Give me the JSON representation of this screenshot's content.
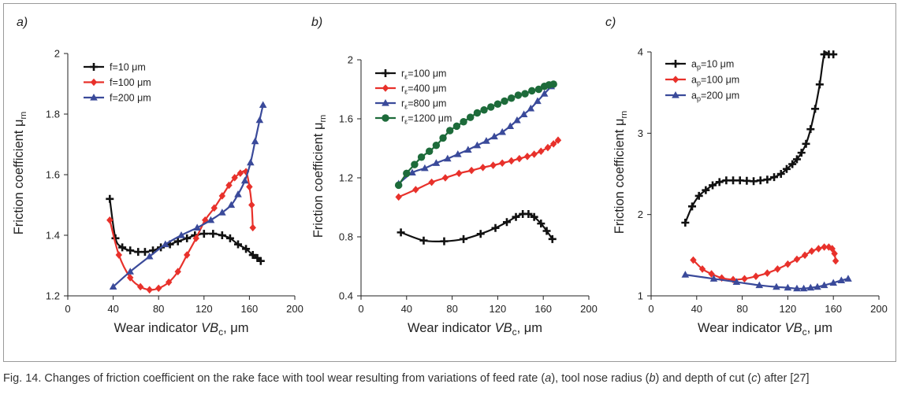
{
  "caption": {
    "p1": "Fig. 14. Changes of friction coefficient on the rake face with tool wear resulting from variations of feed rate (",
    "a": "a",
    "p2": "), tool nose radius (",
    "b": "b",
    "p3": ") and depth of cut (",
    "c": "c",
    "p4": ") after [27]"
  },
  "colors": {
    "black": "#111111",
    "red": "#e8312b",
    "blue": "#3a4a9a",
    "green": "#1d6b3a"
  },
  "chart_data": [
    {
      "type": "line",
      "panel_label": "a)",
      "xlabel": {
        "main": "Wear indicator ",
        "var": "VB",
        "sub": "c",
        "unit": ", μm"
      },
      "ylabel": {
        "main": "Friction coefficient ",
        "var": "μ",
        "sub": "rn"
      },
      "xlim": [
        0,
        200
      ],
      "ylim": [
        1.2,
        2.0
      ],
      "xticks": [
        0,
        40,
        80,
        120,
        160,
        200
      ],
      "xtick_labels": [
        "0",
        "40",
        "80",
        "120",
        "160",
        "200"
      ],
      "yticks": [
        1.2,
        1.4,
        1.6,
        1.8,
        2.0
      ],
      "ytick_labels": [
        "1.2",
        "1.4",
        "1.6",
        "1.8",
        "2"
      ],
      "grid": false,
      "legend_position": "top-left",
      "series": [
        {
          "legend_main": "f=10 μm",
          "legend_sub": "",
          "legend_rest": "",
          "color": "#111111",
          "marker": "plus",
          "x": [
            37,
            42,
            48,
            55,
            62,
            68,
            75,
            82,
            90,
            97,
            105,
            112,
            120,
            128,
            136,
            143,
            150,
            157,
            163,
            167,
            170
          ],
          "y": [
            1.52,
            1.39,
            1.36,
            1.35,
            1.345,
            1.345,
            1.35,
            1.36,
            1.37,
            1.38,
            1.39,
            1.4,
            1.405,
            1.405,
            1.4,
            1.39,
            1.37,
            1.355,
            1.335,
            1.325,
            1.315
          ]
        },
        {
          "legend_main": "f=100 μm",
          "legend_sub": "",
          "legend_rest": "",
          "color": "#e8312b",
          "marker": "diamond",
          "x": [
            37,
            45,
            55,
            64,
            72,
            80,
            89,
            97,
            105,
            113,
            121,
            129,
            136,
            142,
            147,
            152,
            157,
            160,
            162,
            163
          ],
          "y": [
            1.45,
            1.335,
            1.26,
            1.23,
            1.22,
            1.225,
            1.245,
            1.28,
            1.335,
            1.39,
            1.45,
            1.49,
            1.53,
            1.565,
            1.59,
            1.605,
            1.61,
            1.56,
            1.5,
            1.425
          ]
        },
        {
          "legend_main": "f=200 μm",
          "legend_sub": "",
          "legend_rest": "",
          "color": "#3a4a9a",
          "marker": "triangle",
          "x": [
            40,
            55,
            72,
            86,
            100,
            114,
            126,
            136,
            144,
            150,
            156,
            161,
            165,
            169,
            172
          ],
          "y": [
            1.23,
            1.28,
            1.33,
            1.37,
            1.4,
            1.425,
            1.45,
            1.475,
            1.5,
            1.535,
            1.58,
            1.64,
            1.71,
            1.78,
            1.83
          ]
        }
      ]
    },
    {
      "type": "line",
      "panel_label": "b)",
      "xlabel": {
        "main": "Wear indicator ",
        "var": "VB",
        "sub": "c",
        "unit": ", μm"
      },
      "ylabel": {
        "main": "Friction coefficient ",
        "var": "μ",
        "sub": "rn"
      },
      "xlim": [
        0,
        200
      ],
      "ylim": [
        0.4,
        2.0
      ],
      "xticks": [
        0,
        40,
        80,
        120,
        160,
        200
      ],
      "xtick_labels": [
        "0",
        "40",
        "80",
        "120",
        "160",
        "200"
      ],
      "yticks": [
        0.4,
        0.8,
        1.2,
        1.6,
        2.0
      ],
      "ytick_labels": [
        "0.4",
        "0.8",
        "1.2",
        "1.6",
        "2"
      ],
      "grid": false,
      "legend_position": "top-left",
      "series": [
        {
          "legend_main": "r",
          "legend_sub": "ε",
          "legend_rest": "=100 μm",
          "color": "#111111",
          "marker": "plus",
          "x": [
            35,
            55,
            73,
            90,
            105,
            118,
            128,
            136,
            142,
            147,
            152,
            158,
            163,
            168
          ],
          "y": [
            0.83,
            0.775,
            0.77,
            0.785,
            0.82,
            0.86,
            0.9,
            0.935,
            0.955,
            0.955,
            0.935,
            0.89,
            0.84,
            0.785
          ]
        },
        {
          "legend_main": "r",
          "legend_sub": "ε",
          "legend_rest": "=400 μm",
          "color": "#e8312b",
          "marker": "diamond",
          "x": [
            33,
            48,
            62,
            74,
            86,
            97,
            107,
            116,
            124,
            132,
            139,
            146,
            152,
            158,
            164,
            169,
            173
          ],
          "y": [
            1.07,
            1.12,
            1.17,
            1.2,
            1.23,
            1.25,
            1.27,
            1.285,
            1.3,
            1.315,
            1.33,
            1.345,
            1.36,
            1.38,
            1.405,
            1.43,
            1.455
          ]
        },
        {
          "legend_main": "r",
          "legend_sub": "ε",
          "legend_rest": "=800 μm",
          "color": "#3a4a9a",
          "marker": "triangle",
          "x": [
            33,
            45,
            56,
            66,
            76,
            85,
            94,
            102,
            110,
            117,
            124,
            131,
            137,
            143,
            149,
            155,
            161,
            167
          ],
          "y": [
            1.16,
            1.235,
            1.265,
            1.3,
            1.33,
            1.36,
            1.39,
            1.42,
            1.45,
            1.48,
            1.51,
            1.55,
            1.59,
            1.63,
            1.67,
            1.72,
            1.77,
            1.82
          ]
        },
        {
          "legend_main": "r",
          "legend_sub": "ε",
          "legend_rest": "=1200 μm",
          "color": "#1d6b3a",
          "marker": "circle",
          "x": [
            33,
            40,
            47,
            53,
            60,
            66,
            72,
            78,
            84,
            90,
            96,
            102,
            108,
            114,
            120,
            126,
            132,
            138,
            144,
            150,
            156,
            161,
            165,
            169
          ],
          "y": [
            1.15,
            1.23,
            1.29,
            1.34,
            1.38,
            1.42,
            1.47,
            1.52,
            1.55,
            1.58,
            1.61,
            1.64,
            1.66,
            1.68,
            1.7,
            1.72,
            1.74,
            1.76,
            1.77,
            1.79,
            1.8,
            1.82,
            1.83,
            1.835
          ]
        }
      ]
    },
    {
      "type": "line",
      "panel_label": "c)",
      "xlabel": {
        "main": "Wear indicator ",
        "var": "VB",
        "sub": "c",
        "unit": ", μm"
      },
      "ylabel": {
        "main": "Friction coefficient ",
        "var": "μ",
        "sub": "rn"
      },
      "xlim": [
        0,
        200
      ],
      "ylim": [
        1,
        4
      ],
      "xticks": [
        0,
        40,
        80,
        120,
        160,
        200
      ],
      "xtick_labels": [
        "0",
        "40",
        "80",
        "120",
        "160",
        "200"
      ],
      "yticks": [
        1,
        2,
        3,
        4
      ],
      "ytick_labels": [
        "1",
        "2",
        "3",
        "4"
      ],
      "grid": false,
      "legend_position": "top-left",
      "series": [
        {
          "legend_main": "a",
          "legend_sub": "p",
          "legend_rest": "=10 μm",
          "color": "#111111",
          "marker": "plus",
          "x": [
            30,
            36,
            42,
            48,
            54,
            60,
            66,
            72,
            78,
            84,
            90,
            96,
            102,
            108,
            114,
            119,
            124,
            128,
            132,
            136,
            140,
            144,
            148,
            152,
            156,
            160
          ],
          "y": [
            1.9,
            2.1,
            2.23,
            2.3,
            2.36,
            2.4,
            2.42,
            2.42,
            2.42,
            2.415,
            2.41,
            2.42,
            2.43,
            2.46,
            2.5,
            2.56,
            2.62,
            2.68,
            2.76,
            2.87,
            3.05,
            3.3,
            3.6,
            3.97,
            3.97,
            3.97
          ]
        },
        {
          "legend_main": "a",
          "legend_sub": "p",
          "legend_rest": "=100 μm",
          "color": "#e8312b",
          "marker": "diamond",
          "x": [
            37,
            45,
            53,
            62,
            72,
            82,
            92,
            102,
            111,
            120,
            128,
            135,
            141,
            147,
            152,
            156,
            159,
            161,
            162
          ],
          "y": [
            1.44,
            1.33,
            1.27,
            1.22,
            1.2,
            1.21,
            1.24,
            1.28,
            1.33,
            1.39,
            1.45,
            1.5,
            1.55,
            1.58,
            1.6,
            1.6,
            1.58,
            1.52,
            1.43
          ]
        },
        {
          "legend_main": "a",
          "legend_sub": "p",
          "legend_rest": "=200 μm",
          "color": "#3a4a9a",
          "marker": "triangle",
          "x": [
            30,
            55,
            75,
            95,
            110,
            120,
            128,
            134,
            140,
            146,
            152,
            160,
            167,
            173
          ],
          "y": [
            1.26,
            1.21,
            1.17,
            1.13,
            1.11,
            1.1,
            1.09,
            1.09,
            1.1,
            1.11,
            1.13,
            1.16,
            1.19,
            1.21
          ]
        }
      ]
    }
  ]
}
